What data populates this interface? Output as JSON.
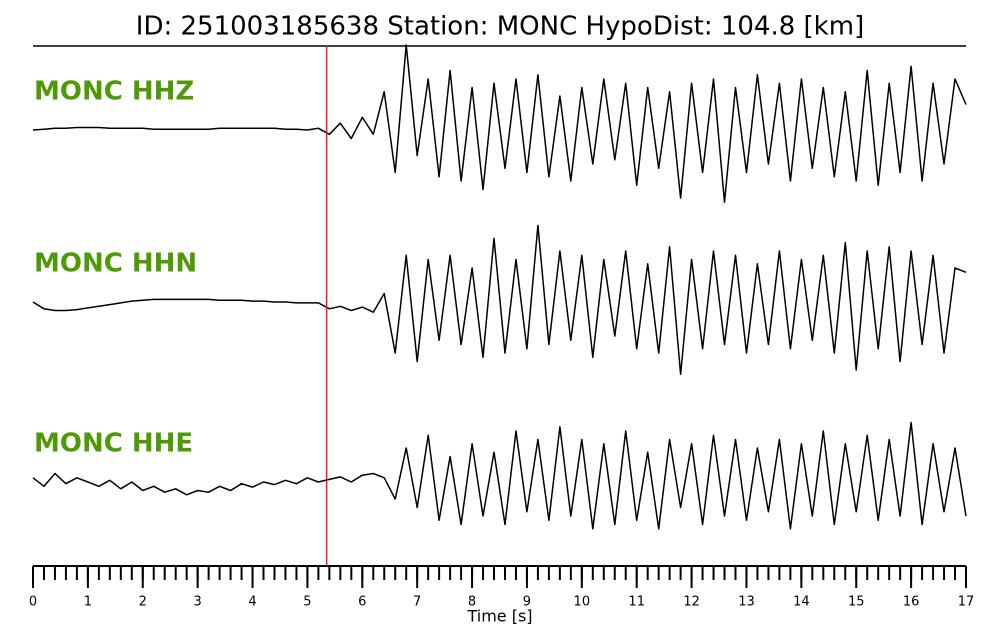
{
  "chart_data": {
    "type": "line",
    "title": "ID: 251003185638   Station: MONC   HypoDist:   104.8 [km]",
    "xlabel": "Time [s]",
    "xlim": [
      0,
      17
    ],
    "xticks": [
      0,
      1,
      2,
      3,
      4,
      5,
      6,
      7,
      8,
      9,
      10,
      11,
      12,
      13,
      14,
      15,
      16,
      17
    ],
    "ylim": [
      -1,
      1
    ],
    "label_color": "#4e9a06",
    "pick_time": 5.35,
    "pick_color": "#e0201b",
    "x": [
      0,
      0.2,
      0.4,
      0.6,
      0.8,
      1,
      1.2,
      1.4,
      1.6,
      1.8,
      2,
      2.2,
      2.4,
      2.6,
      2.8,
      3,
      3.2,
      3.4,
      3.6,
      3.8,
      4,
      4.2,
      4.4,
      4.6,
      4.8,
      5,
      5.2,
      5.4,
      5.6,
      5.8,
      6,
      6.2,
      6.4,
      6.6,
      6.8,
      7,
      7.2,
      7.4,
      7.6,
      7.8,
      8,
      8.2,
      8.4,
      8.6,
      8.8,
      9,
      9.2,
      9.4,
      9.6,
      9.8,
      10,
      10.2,
      10.4,
      10.6,
      10.8,
      11,
      11.2,
      11.4,
      11.6,
      11.8,
      12,
      12.2,
      12.4,
      12.6,
      12.8,
      13,
      13.2,
      13.4,
      13.6,
      13.8,
      14,
      14.2,
      14.4,
      14.6,
      14.8,
      15,
      15.2,
      15.4,
      15.6,
      15.8,
      16,
      16.2,
      16.4,
      16.6,
      16.8,
      17
    ],
    "series": [
      {
        "name": "MONC HHZ",
        "color": "#000000",
        "values": [
          0,
          0.01,
          0.02,
          0.02,
          0.03,
          0.03,
          0.03,
          0.02,
          0.02,
          0.02,
          0.02,
          0.01,
          0.01,
          0.01,
          0.01,
          0.01,
          0.01,
          0.02,
          0.02,
          0.02,
          0.02,
          0.02,
          0.02,
          0.01,
          0.01,
          0.0,
          0.02,
          -0.05,
          0.08,
          -0.1,
          0.15,
          -0.05,
          0.45,
          -0.5,
          1.0,
          -0.3,
          0.6,
          -0.55,
          0.7,
          -0.6,
          0.5,
          -0.7,
          0.55,
          -0.45,
          0.6,
          -0.5,
          0.65,
          -0.55,
          0.4,
          -0.6,
          0.5,
          -0.4,
          0.6,
          -0.35,
          0.55,
          -0.65,
          0.5,
          -0.45,
          0.45,
          -0.8,
          0.55,
          -0.5,
          0.6,
          -0.85,
          0.5,
          -0.5,
          0.65,
          -0.4,
          0.55,
          -0.6,
          0.6,
          -0.45,
          0.5,
          -0.55,
          0.45,
          -0.6,
          0.7,
          -0.65,
          0.55,
          -0.5,
          0.75,
          -0.6,
          0.55,
          -0.4,
          0.6,
          0.3
        ]
      },
      {
        "name": "MONC HHN",
        "color": "#000000",
        "values": [
          0,
          -0.08,
          -0.1,
          -0.1,
          -0.09,
          -0.07,
          -0.05,
          -0.03,
          -0.01,
          0.01,
          0.02,
          0.03,
          0.03,
          0.03,
          0.03,
          0.03,
          0.03,
          0.02,
          0.02,
          0.02,
          0.01,
          0.01,
          0.0,
          0.0,
          -0.01,
          -0.01,
          -0.01,
          -0.08,
          -0.05,
          -0.1,
          -0.06,
          -0.12,
          0.1,
          -0.6,
          0.55,
          -0.7,
          0.5,
          -0.45,
          0.55,
          -0.5,
          0.4,
          -0.65,
          0.75,
          -0.6,
          0.5,
          -0.55,
          0.9,
          -0.5,
          0.6,
          -0.45,
          0.55,
          -0.65,
          0.5,
          -0.4,
          0.6,
          -0.55,
          0.45,
          -0.6,
          0.65,
          -0.85,
          0.5,
          -0.55,
          0.6,
          -0.5,
          0.55,
          -0.6,
          0.45,
          -0.5,
          0.6,
          -0.55,
          0.5,
          -0.45,
          0.55,
          -0.6,
          0.7,
          -0.8,
          0.6,
          -0.55,
          0.65,
          -0.7,
          0.6,
          -0.5,
          0.55,
          -0.6,
          0.4,
          0.35
        ]
      },
      {
        "name": "MONC HHE",
        "color": "#000000",
        "values": [
          0.05,
          -0.05,
          0.1,
          -0.02,
          0.05,
          0.0,
          -0.05,
          0.02,
          -0.08,
          0.0,
          -0.1,
          -0.05,
          -0.12,
          -0.08,
          -0.15,
          -0.1,
          -0.12,
          -0.05,
          -0.1,
          -0.02,
          -0.06,
          0.0,
          -0.03,
          0.02,
          -0.02,
          0.05,
          0.0,
          0.03,
          0.06,
          0.0,
          0.08,
          0.1,
          0.05,
          -0.2,
          0.4,
          -0.3,
          0.55,
          -0.45,
          0.3,
          -0.5,
          0.45,
          -0.4,
          0.35,
          -0.5,
          0.6,
          -0.35,
          0.5,
          -0.45,
          0.65,
          -0.4,
          0.5,
          -0.55,
          0.45,
          -0.5,
          0.6,
          -0.45,
          0.35,
          -0.55,
          0.5,
          -0.3,
          0.45,
          -0.5,
          0.55,
          -0.4,
          0.5,
          -0.45,
          0.4,
          -0.35,
          0.5,
          -0.55,
          0.45,
          -0.4,
          0.6,
          -0.5,
          0.45,
          -0.35,
          0.55,
          -0.45,
          0.5,
          -0.4,
          0.7,
          -0.5,
          0.45,
          -0.35,
          0.4,
          -0.4
        ]
      }
    ]
  }
}
